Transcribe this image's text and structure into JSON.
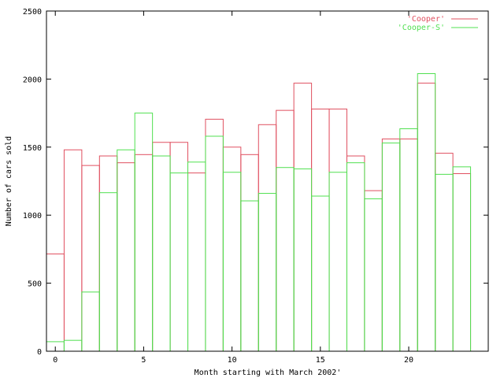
{
  "chart_data": {
    "type": "bar",
    "style": "boxes-outline",
    "title": "",
    "xlabel": "Month starting with March 2002'",
    "ylabel": "Number of cars sold",
    "xlim": [
      -0.5,
      24.5
    ],
    "ylim": [
      0,
      2500
    ],
    "xticks": [
      0,
      5,
      10,
      15,
      20
    ],
    "yticks": [
      0,
      500,
      1000,
      1500,
      2000,
      2500
    ],
    "grid": false,
    "legend_position": "top-right",
    "x": [
      0,
      1,
      2,
      3,
      4,
      5,
      6,
      7,
      8,
      9,
      10,
      11,
      12,
      13,
      14,
      15,
      16,
      17,
      18,
      19,
      20,
      21,
      22,
      23
    ],
    "series": [
      {
        "name": "'Cooper'",
        "color": "#e05060",
        "values": [
          715,
          1480,
          1365,
          1435,
          1385,
          1445,
          1535,
          1535,
          1310,
          1705,
          1500,
          1445,
          1665,
          1770,
          1970,
          1780,
          1780,
          1435,
          1180,
          1560,
          1560,
          1970,
          1455,
          1305
        ]
      },
      {
        "name": "'Cooper-S'",
        "color": "#50e050",
        "values": [
          70,
          80,
          435,
          1165,
          1480,
          1750,
          1435,
          1310,
          1390,
          1580,
          1315,
          1105,
          1160,
          1350,
          1340,
          1140,
          1315,
          1385,
          1120,
          1530,
          1635,
          2040,
          1300,
          1355
        ]
      }
    ]
  }
}
